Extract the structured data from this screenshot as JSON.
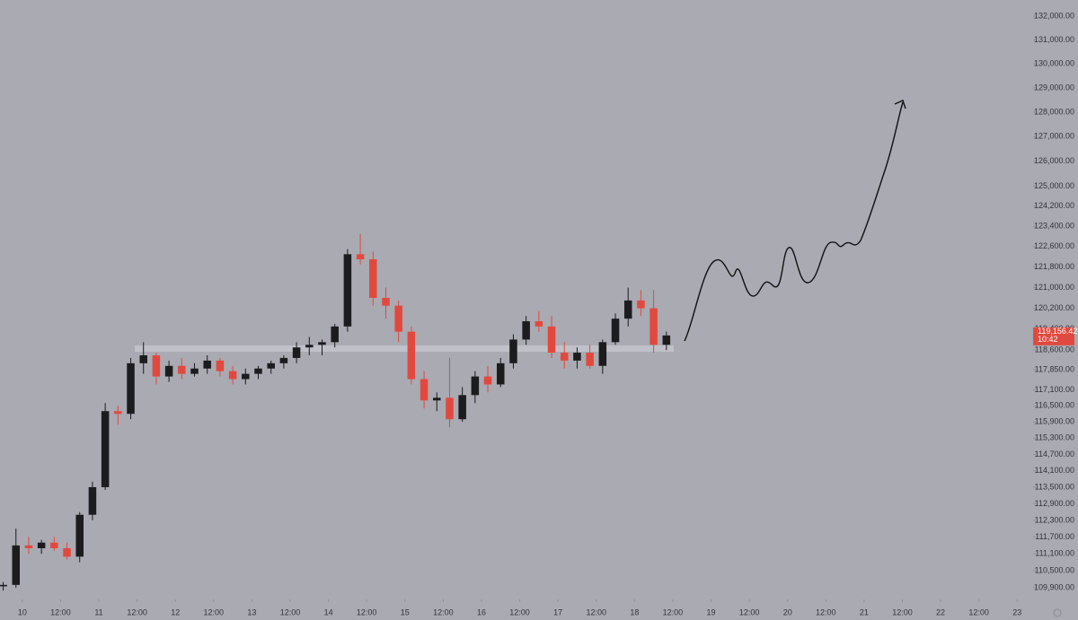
{
  "chart_data": {
    "type": "candlestick",
    "log_scale": true,
    "up_color": "#1c1c1f",
    "down_color": "#e2493e",
    "last_price_label": "119,156.42",
    "countdown": "10:42",
    "x": [
      -8,
      -4,
      0,
      4,
      8,
      12,
      16,
      20,
      24,
      28,
      32,
      36,
      40,
      44,
      48,
      52,
      56,
      60,
      64,
      68,
      72,
      76,
      80,
      84,
      88,
      92,
      96,
      100,
      104,
      108,
      112,
      116,
      120,
      124,
      128,
      132,
      136,
      140,
      144,
      148,
      152,
      156,
      160,
      164,
      168,
      172,
      176,
      180,
      184,
      188,
      192,
      196,
      200
    ],
    "open": [
      109950,
      110000,
      111400,
      111300,
      111500,
      111300,
      111000,
      112500,
      113500,
      116300,
      116200,
      118100,
      118400,
      117600,
      118000,
      117700,
      117900,
      118200,
      117800,
      117500,
      117700,
      117900,
      118100,
      118300,
      118700,
      118800,
      118900,
      119500,
      122300,
      122100,
      120600,
      120300,
      119300,
      117500,
      116700,
      116800,
      116000,
      116900,
      117600,
      117300,
      118100,
      119000,
      119700,
      119500,
      118500,
      118200,
      118500,
      118000,
      118900,
      119800,
      120500,
      120200,
      118800
    ],
    "high": [
      110100,
      112000,
      111700,
      111600,
      111700,
      111500,
      112600,
      113700,
      116600,
      116500,
      118300,
      118900,
      118500,
      118200,
      118300,
      118100,
      118400,
      118300,
      118000,
      117900,
      118000,
      118200,
      118400,
      118900,
      119100,
      119000,
      119600,
      122500,
      123100,
      122400,
      121000,
      120500,
      119500,
      117800,
      117000,
      118300,
      117200,
      117800,
      118000,
      118300,
      119200,
      119900,
      120100,
      119900,
      118900,
      118700,
      118800,
      119000,
      120000,
      121000,
      120900,
      120900,
      119300
    ],
    "low": [
      109800,
      109900,
      111100,
      111100,
      111200,
      110900,
      110800,
      112300,
      113400,
      115800,
      116000,
      117700,
      117300,
      117400,
      117500,
      117600,
      117700,
      117600,
      117300,
      117300,
      117500,
      117700,
      117900,
      118100,
      118400,
      118400,
      118700,
      119300,
      121900,
      120300,
      119800,
      118900,
      117300,
      116400,
      116300,
      115700,
      115900,
      116600,
      117000,
      117200,
      117900,
      118800,
      119300,
      118300,
      117900,
      117900,
      117900,
      117700,
      118800,
      119500,
      119900,
      118500,
      118600
    ],
    "close": [
      110000,
      111400,
      111300,
      111500,
      111300,
      111000,
      112500,
      113500,
      116300,
      116200,
      118100,
      118400,
      117600,
      118000,
      117700,
      117900,
      118200,
      117800,
      117500,
      117700,
      117900,
      118100,
      118300,
      118700,
      118800,
      118900,
      119500,
      122300,
      122100,
      120600,
      120300,
      119300,
      117500,
      116700,
      116800,
      116000,
      116900,
      117600,
      117300,
      118100,
      119000,
      119700,
      119500,
      118500,
      118200,
      118500,
      118000,
      118900,
      119800,
      120500,
      120200,
      118800,
      119156.42
    ],
    "xlim": [
      -7,
      317
    ],
    "xticks": [
      {
        "value": 0,
        "label": "10"
      },
      {
        "value": 12,
        "label": "12:00"
      },
      {
        "value": 24,
        "label": "11"
      },
      {
        "value": 36,
        "label": "12:00"
      },
      {
        "value": 48,
        "label": "12"
      },
      {
        "value": 60,
        "label": "12:00"
      },
      {
        "value": 72,
        "label": "13"
      },
      {
        "value": 84,
        "label": "12:00"
      },
      {
        "value": 96,
        "label": "14"
      },
      {
        "value": 108,
        "label": "12:00"
      },
      {
        "value": 120,
        "label": "15"
      },
      {
        "value": 132,
        "label": "12:00"
      },
      {
        "value": 144,
        "label": "16"
      },
      {
        "value": 156,
        "label": "12:00"
      },
      {
        "value": 168,
        "label": "17"
      },
      {
        "value": 180,
        "label": "12:00"
      },
      {
        "value": 192,
        "label": "18"
      },
      {
        "value": 204,
        "label": "12:00"
      },
      {
        "value": 216,
        "label": "19"
      },
      {
        "value": 228,
        "label": "12:00"
      },
      {
        "value": 240,
        "label": "20"
      },
      {
        "value": 252,
        "label": "12:00"
      },
      {
        "value": 264,
        "label": "21"
      },
      {
        "value": 276,
        "label": "12:00"
      },
      {
        "value": 288,
        "label": "22"
      },
      {
        "value": 300,
        "label": "12:00"
      },
      {
        "value": 312,
        "label": "23"
      }
    ],
    "ylim": [
      109490,
      132685
    ],
    "yticks": [
      {
        "value": 132000,
        "label": "132,000.00"
      },
      {
        "value": 131000,
        "label": "131,000.00"
      },
      {
        "value": 130000,
        "label": "130,000.00"
      },
      {
        "value": 129000,
        "label": "129,000.00"
      },
      {
        "value": 128000,
        "label": "128,000.00"
      },
      {
        "value": 127000,
        "label": "127,000.00"
      },
      {
        "value": 126000,
        "label": "126,000.00"
      },
      {
        "value": 125000,
        "label": "125,000.00"
      },
      {
        "value": 124200,
        "label": "124,200.00"
      },
      {
        "value": 123400,
        "label": "123,400.00"
      },
      {
        "value": 122600,
        "label": "122,600.00"
      },
      {
        "value": 121800,
        "label": "121,800.00"
      },
      {
        "value": 121000,
        "label": "121,000.00"
      },
      {
        "value": 120200,
        "label": "120,200.00"
      },
      {
        "value": 119400,
        "label": "119,400.00"
      },
      {
        "value": 118600,
        "label": "118,600.00"
      },
      {
        "value": 117850,
        "label": "117,850.00"
      },
      {
        "value": 117100,
        "label": "117,100.00"
      },
      {
        "value": 116500,
        "label": "116,500.00"
      },
      {
        "value": 115900,
        "label": "115,900.00"
      },
      {
        "value": 115300,
        "label": "115,300.00"
      },
      {
        "value": 114700,
        "label": "114,700.00"
      },
      {
        "value": 114100,
        "label": "114,100.00"
      },
      {
        "value": 113500,
        "label": "113,500.00"
      },
      {
        "value": 112900,
        "label": "112,900.00"
      },
      {
        "value": 112300,
        "label": "112,300.00"
      },
      {
        "value": 111700,
        "label": "111,700.00"
      },
      {
        "value": 111100,
        "label": "111,100.00"
      },
      {
        "value": 110500,
        "label": "110,500.00"
      },
      {
        "value": 109900,
        "label": "109,900.00"
      }
    ]
  }
}
